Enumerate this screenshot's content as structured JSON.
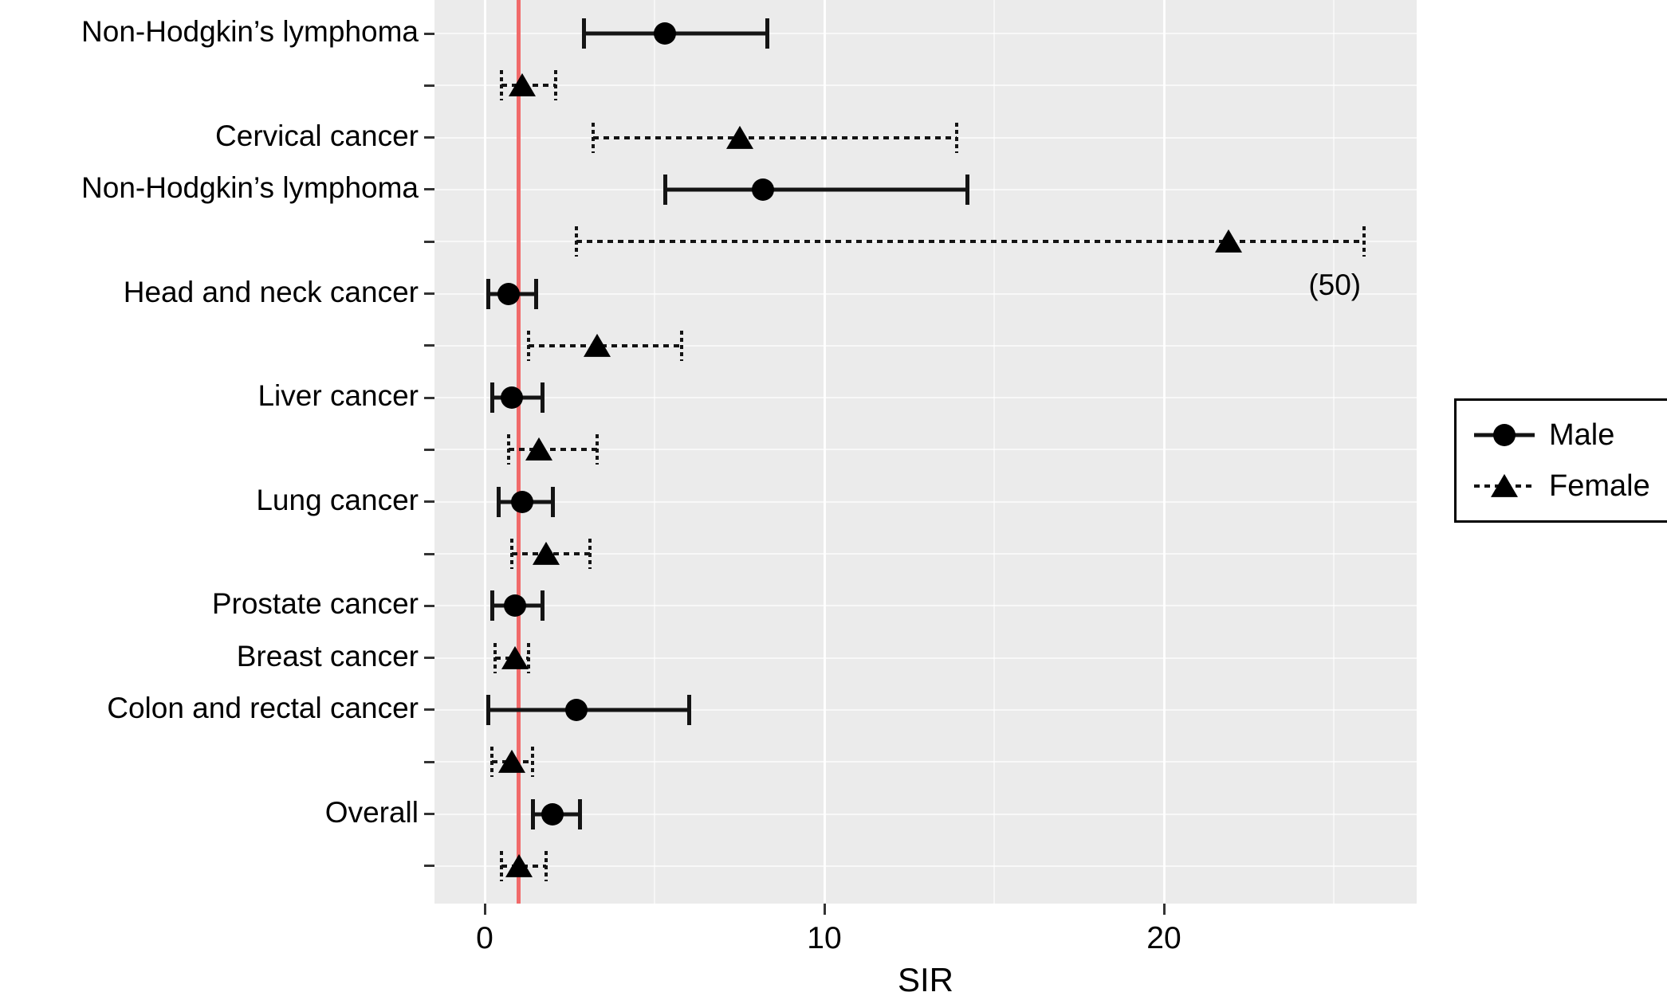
{
  "chart_data": {
    "type": "forest",
    "title": "",
    "xlabel": "SIR",
    "x_ticks": [
      0,
      10,
      20
    ],
    "x_minor_ticks": [
      5,
      15,
      25
    ],
    "xlim": [
      -1.4,
      27.4
    ],
    "panel_background": "#ebebeb",
    "reference_line": {
      "x": 1,
      "color": "#f16a6a"
    },
    "legend": {
      "position": "right",
      "items": [
        {
          "label": "Male",
          "marker": "circle",
          "line": "solid"
        },
        {
          "label": "Female",
          "marker": "triangle",
          "line": "dotted"
        }
      ]
    },
    "rows": [
      {
        "label": "Non-Hodgkin’s lymphoma",
        "series": "Male",
        "est": 5.3,
        "lo": 2.9,
        "hi": 8.3
      },
      {
        "label": "",
        "series": "Female",
        "est": 1.1,
        "lo": 0.5,
        "hi": 2.1
      },
      {
        "label": "Cervical cancer",
        "series": "Female",
        "est": 7.5,
        "lo": 3.2,
        "hi": 13.9
      },
      {
        "label": "Non-Hodgkin’s lymphoma",
        "series": "Male",
        "est": 8.2,
        "lo": 5.3,
        "hi": 14.2
      },
      {
        "label": "",
        "series": "Female",
        "est": 21.9,
        "lo": 2.7,
        "hi": 50,
        "hi_clipped_at": 25.9,
        "hi_annotation": "(50)"
      },
      {
        "label": "Head and neck cancer",
        "series": "Male",
        "est": 0.7,
        "lo": 0.1,
        "hi": 1.5
      },
      {
        "label": "",
        "series": "Female",
        "est": 3.3,
        "lo": 1.3,
        "hi": 5.8
      },
      {
        "label": "Liver cancer",
        "series": "Male",
        "est": 0.8,
        "lo": 0.2,
        "hi": 1.7
      },
      {
        "label": "",
        "series": "Female",
        "est": 1.6,
        "lo": 0.7,
        "hi": 3.3
      },
      {
        "label": "Lung cancer",
        "series": "Male",
        "est": 1.1,
        "lo": 0.4,
        "hi": 2.0
      },
      {
        "label": "",
        "series": "Female",
        "est": 1.8,
        "lo": 0.8,
        "hi": 3.1
      },
      {
        "label": "Prostate cancer",
        "series": "Male",
        "est": 0.9,
        "lo": 0.2,
        "hi": 1.7
      },
      {
        "label": "Breast cancer",
        "series": "Female",
        "est": 0.9,
        "lo": 0.3,
        "hi": 1.3
      },
      {
        "label": "Colon and rectal cancer",
        "series": "Male",
        "est": 2.7,
        "lo": 0.1,
        "hi": 6.0
      },
      {
        "label": "",
        "series": "Female",
        "est": 0.8,
        "lo": 0.2,
        "hi": 1.4
      },
      {
        "label": "Overall",
        "series": "Male",
        "est": 2.0,
        "lo": 1.4,
        "hi": 2.8
      },
      {
        "label": "",
        "series": "Female",
        "est": 1.0,
        "lo": 0.5,
        "hi": 1.8
      }
    ]
  }
}
